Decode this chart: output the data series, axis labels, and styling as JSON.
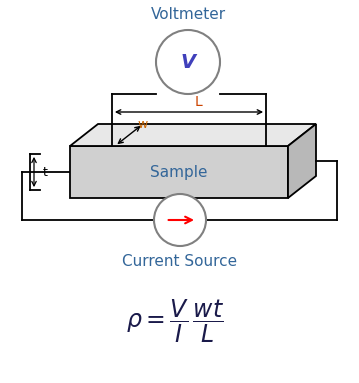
{
  "title": "Voltmeter",
  "current_source_label": "Current Source",
  "sample_label": "Sample",
  "voltmeter_symbol": "V",
  "L_label": "L",
  "w_label": "w",
  "t_label": "t",
  "bg_color": "#ffffff",
  "box_color": "#000000",
  "sample_fill": "#d0d0d0",
  "sample_top_fill": "#e8e8e8",
  "sample_right_fill": "#b8b8b8",
  "circuit_line_color": "#000000",
  "voltmeter_edge_color": "#808080",
  "voltmeter_text_color": "#4040bb",
  "arrow_color": "#ff0000",
  "label_color": "#336699",
  "dim_arrow_color": "#000000",
  "L_label_color": "#cc4400",
  "formula_color": "#1a1a4a",
  "w_label_color": "#cc6600"
}
